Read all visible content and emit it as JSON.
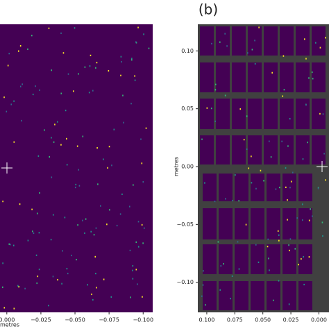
{
  "chart_data": [
    {
      "type": "image",
      "x_label": "metres",
      "xlim": [
        0.005,
        -0.107
      ],
      "xticks": [
        {
          "value": 0,
          "label": "0.000"
        },
        {
          "value": -0.025,
          "label": "−0.025"
        },
        {
          "value": -0.05,
          "label": "−0.050"
        },
        {
          "value": -0.075,
          "label": "−0.075"
        },
        {
          "value": -0.1,
          "label": "−0.100"
        }
      ]
    },
    {
      "type": "image",
      "title": "(b)",
      "y_label": "metres",
      "xlim": [
        0.108,
        -0.009
      ],
      "ylim": [
        -0.126,
        0.123
      ],
      "xticks": [
        {
          "value": 0.1,
          "label": "0.100"
        },
        {
          "value": 0.075,
          "label": "0.075"
        },
        {
          "value": 0.05,
          "label": "0.050"
        },
        {
          "value": 0.025,
          "label": "0.025"
        },
        {
          "value": 0,
          "label": "0.000"
        }
      ],
      "yticks": [
        {
          "value": 0.1,
          "label": "0.10"
        },
        {
          "value": 0.05,
          "label": "0.05"
        },
        {
          "value": 0,
          "label": "0.00"
        },
        {
          "value": -0.05,
          "label": "−0.05"
        },
        {
          "value": -0.1,
          "label": "−0.10"
        }
      ]
    }
  ]
}
